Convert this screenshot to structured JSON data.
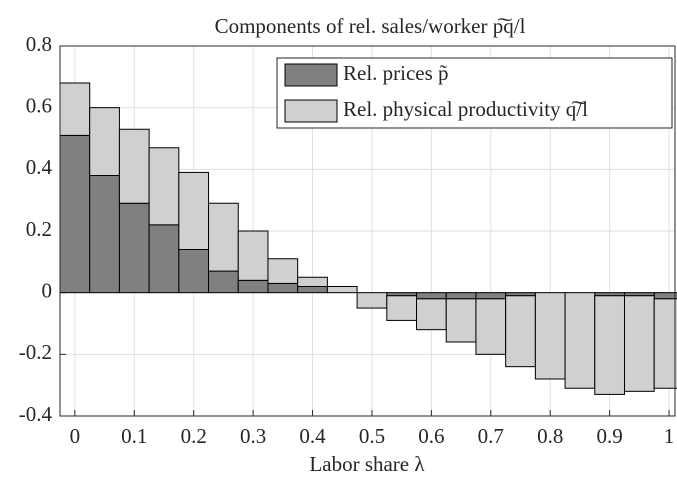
{
  "chart_data": {
    "type": "bar",
    "title": "Components of rel. sales/worker p͠q/l",
    "x_label": "Labor share λ",
    "x": [
      0,
      0.05,
      0.1,
      0.15,
      0.2,
      0.25,
      0.3,
      0.35,
      0.4,
      0.45,
      0.5,
      0.55,
      0.6,
      0.65,
      0.7,
      0.75,
      0.8,
      0.85,
      0.9,
      0.95,
      1.0
    ],
    "series": [
      {
        "name": "Rel. prices p̃",
        "color": "#808080",
        "values": [
          0.51,
          0.38,
          0.29,
          0.22,
          0.14,
          0.07,
          0.04,
          0.03,
          0.02,
          0,
          0,
          -0.01,
          -0.02,
          -0.02,
          -0.02,
          -0.01,
          0,
          0,
          -0.01,
          -0.01,
          -0.02
        ]
      },
      {
        "name": "Rel. physical productivity q͠/l",
        "color": "#d0d0d0",
        "values": [
          0.17,
          0.22,
          0.24,
          0.25,
          0.25,
          0.22,
          0.16,
          0.08,
          0.03,
          0.02,
          -0.05,
          -0.08,
          -0.1,
          -0.14,
          -0.18,
          -0.23,
          -0.28,
          -0.31,
          -0.32,
          -0.31,
          -0.29
        ]
      }
    ],
    "stacked": true,
    "xlim": [
      -0.025,
      1.01
    ],
    "xticks": [
      0,
      0.1,
      0.2,
      0.3,
      0.4,
      0.5,
      0.6,
      0.7,
      0.8,
      0.9,
      1
    ],
    "ylim": [
      -0.4,
      0.8
    ],
    "yticks": [
      -0.4,
      -0.2,
      0,
      0.2,
      0.4,
      0.6,
      0.8
    ],
    "grid": true,
    "legend": "upper right"
  }
}
